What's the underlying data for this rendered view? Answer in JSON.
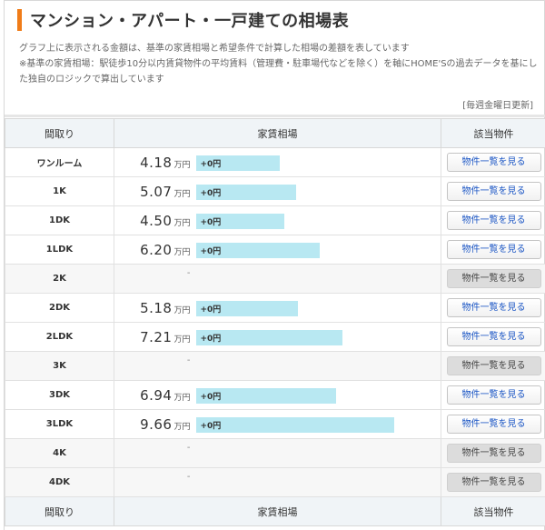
{
  "page_title": "マンション・アパート・一戸建ての相場表",
  "description": [
    "グラフ上に表示される金額は、基準の家賃相場と希望条件で計算した相場の差額を表しています",
    "※基準の家賃相場：駅徒歩10分以内賃貸物件の平均賃料（管理費・駐車場代などを除く）を軸にHOME'Sの過去データを基にした独自のロジックで算出しています"
  ],
  "updated_label": "[毎週金曜日更新]",
  "table": {
    "headers": [
      "間取り",
      "家賃相場",
      "該当物件"
    ],
    "unit": "万円",
    "rows": [
      {
        "layout": "ワンルーム",
        "price": "4.18",
        "diff": "+0円",
        "bar": 0.42,
        "button": "物件一覧を見る",
        "available": true
      },
      {
        "layout": "1K",
        "price": "5.07",
        "diff": "+0円",
        "bar": 0.5,
        "button": "物件一覧を見る",
        "available": true
      },
      {
        "layout": "1DK",
        "price": "4.50",
        "diff": "+0円",
        "bar": 0.44,
        "button": "物件一覧を見る",
        "available": true
      },
      {
        "layout": "1LDK",
        "price": "6.20",
        "diff": "+0円",
        "bar": 0.62,
        "button": "物件一覧を見る",
        "available": true
      },
      {
        "layout": "2K",
        "price": "-",
        "diff": "",
        "bar": 0,
        "button": "物件一覧を見る",
        "available": false
      },
      {
        "layout": "2DK",
        "price": "5.18",
        "diff": "+0円",
        "bar": 0.51,
        "button": "物件一覧を見る",
        "available": true
      },
      {
        "layout": "2LDK",
        "price": "7.21",
        "diff": "+0円",
        "bar": 0.73,
        "button": "物件一覧を見る",
        "available": true
      },
      {
        "layout": "3K",
        "price": "-",
        "diff": "",
        "bar": 0,
        "button": "物件一覧を見る",
        "available": false
      },
      {
        "layout": "3DK",
        "price": "6.94",
        "diff": "+0円",
        "bar": 0.7,
        "button": "物件一覧を見る",
        "available": true
      },
      {
        "layout": "3LDK",
        "price": "9.66",
        "diff": "+0円",
        "bar": 0.99,
        "button": "物件一覧を見る",
        "available": true
      },
      {
        "layout": "4K",
        "price": "-",
        "diff": "",
        "bar": 0,
        "button": "物件一覧を見る",
        "available": false
      },
      {
        "layout": "4DK",
        "price": "-",
        "diff": "",
        "bar": 0,
        "button": "物件一覧を見る",
        "available": false
      }
    ]
  },
  "colors": {
    "accent": "#f07c18",
    "bar": "#b8e8f2",
    "link": "#1a55c4"
  }
}
